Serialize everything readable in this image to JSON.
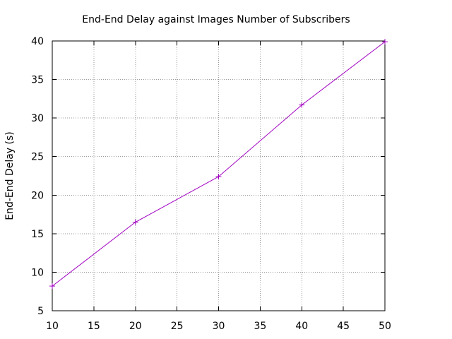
{
  "chart_data": {
    "type": "line",
    "title": "End-End Delay  against Images Number of Subscribers",
    "xlabel": "",
    "ylabel": "End-End Delay (s)",
    "xlim": [
      10,
      50
    ],
    "ylim": [
      5,
      40
    ],
    "xticks": [
      "10",
      "15",
      "20",
      "25",
      "30",
      "35",
      "40",
      "45",
      "50"
    ],
    "yticks": [
      "5",
      "10",
      "15",
      "20",
      "25",
      "30",
      "35",
      "40"
    ],
    "grid": true,
    "series": [
      {
        "name": "End-End Delay",
        "color": "#a000c0",
        "marker": "plus",
        "x": [
          10,
          20,
          30,
          40,
          50
        ],
        "values": [
          8.2,
          16.5,
          22.4,
          31.7,
          39.9
        ]
      }
    ]
  }
}
